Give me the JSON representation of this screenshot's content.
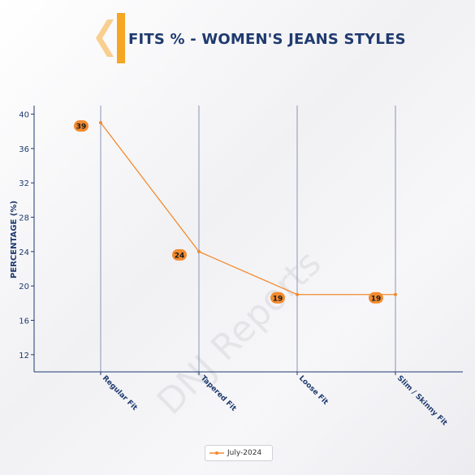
{
  "title": "FITS % - WOMEN'S JEANS STYLES",
  "watermark": "DNJ Reports",
  "colors": {
    "accent": "#f28a2e",
    "title": "#1f3a6e",
    "axis": "#1f3a6e",
    "grid": "#8a93b8",
    "chevron": "#f5a623"
  },
  "icons": {
    "title_mark": "chevron-left-icon"
  },
  "chart_data": {
    "type": "line",
    "categories": [
      "Regular Fit",
      "Tapered Fit",
      "Loose Fit",
      "Slim / Skinny Fit"
    ],
    "series": [
      {
        "name": "July-2024",
        "values": [
          39,
          24,
          19,
          19
        ]
      }
    ],
    "data_labels": [
      "39",
      "24",
      "19",
      "19"
    ],
    "xlabel": "",
    "ylabel": "PERCENTAGE (%)",
    "ylim": [
      10,
      41
    ],
    "yticks": [
      12,
      16,
      20,
      24,
      28,
      32,
      36,
      40
    ],
    "grid": "vertical",
    "legend": "bottom-center"
  }
}
